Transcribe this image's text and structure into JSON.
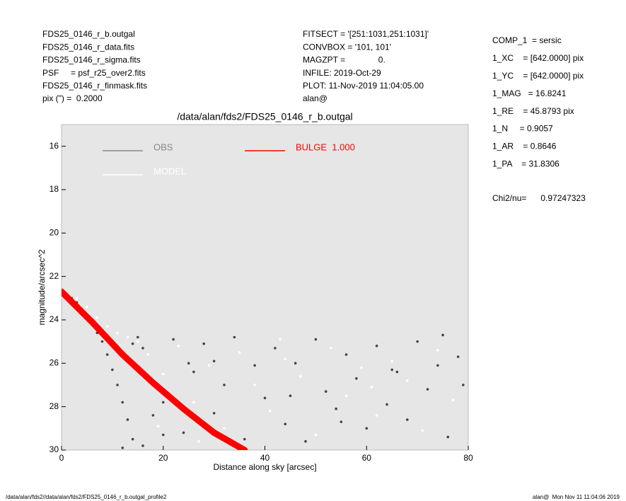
{
  "header_left": [
    "FDS25_0146_r_b.outgal",
    "FDS25_0146_r_data.fits",
    "FDS25_0146_r_sigma.fits",
    "PSF     = psf_r25_over2.fits",
    "FDS25_0146_r_finmask.fits",
    "pix (\") =  0.2000"
  ],
  "header_middle": [
    "FITSECT = '[251:1031,251:1031]'",
    "CONVBOX = '101, 101'",
    "MAGZPT =              0.",
    "INFILE: 2019-Oct-29",
    "PLOT: 11-Nov-2019 11:04:05.00",
    "alan@"
  ],
  "parameters": [
    "COMP_1  = sersic",
    "1_XC    = [642.0000] pix",
    "1_YC    = [642.0000] pix",
    "1_MAG   = 16.8241",
    "1_RE    = 45.8793 pix",
    "1_N     = 0.9057",
    "1_AR    = 0.8646",
    "1_PA    = 31.8306"
  ],
  "chi2": "Chi2/nu=      0.97247323",
  "footer_left": "/data/alan/fds2//data/alan/fds2/FDS25_0146_r_b.outgal_profile2",
  "footer_right": "alan@  Mon Nov 11 11:04:06 2019",
  "chart_data": {
    "type": "scatter",
    "title": "/data/alan/fds2/FDS25_0146_r_b.outgal",
    "xlabel": "Distance along sky [arcsec]",
    "ylabel": "magnitude/arcsec^2",
    "xlim": [
      0,
      80
    ],
    "ylim": [
      30,
      15
    ],
    "xticks": [
      0,
      20,
      40,
      60,
      80
    ],
    "yticks": [
      16,
      18,
      20,
      22,
      24,
      26,
      28,
      30
    ],
    "background": "#e6e6e6",
    "series": [
      {
        "name": "OBS",
        "color": "#444444",
        "legend_color": "#888888",
        "marker": "dot",
        "x": [
          1,
          2,
          3,
          4,
          5,
          6,
          7,
          8,
          9,
          10,
          11,
          12,
          13,
          14,
          15,
          16,
          18,
          20,
          22,
          24,
          26,
          28,
          30,
          32,
          34,
          36,
          38,
          40,
          42,
          44,
          46,
          48,
          50,
          52,
          54,
          56,
          58,
          60,
          62,
          64,
          66,
          68,
          70,
          72,
          74,
          76,
          78,
          79,
          14,
          16,
          18,
          12,
          20,
          25,
          30,
          45,
          55,
          65,
          75
        ],
        "values": [
          22.8,
          23.0,
          23.2,
          23.5,
          23.9,
          24.2,
          24.6,
          25.0,
          25.6,
          26.3,
          27.0,
          27.8,
          28.6,
          29.5,
          24.8,
          25.3,
          26.9,
          27.8,
          24.9,
          29.2,
          26.4,
          25.1,
          28.3,
          27.0,
          24.8,
          29.5,
          26.1,
          27.6,
          25.3,
          28.8,
          26.0,
          29.6,
          24.9,
          27.3,
          28.1,
          25.6,
          26.7,
          29.0,
          25.2,
          27.9,
          26.4,
          28.6,
          25.0,
          27.2,
          26.1,
          29.4,
          25.7,
          27.0,
          25.1,
          29.8,
          28.4,
          29.9,
          29.3,
          26.0,
          25.9,
          27.5,
          28.7,
          26.3,
          24.7
        ]
      },
      {
        "name": "MODEL",
        "color": "#ffffff",
        "legend_color": "#ffffff",
        "marker": "dot",
        "x": [
          3,
          5,
          7,
          9,
          11,
          13,
          15,
          17,
          20,
          23,
          26,
          29,
          32,
          35,
          38,
          41,
          44,
          47,
          50,
          53,
          56,
          59,
          62,
          65,
          68,
          71,
          74,
          77,
          19,
          27,
          43,
          61
        ],
        "values": [
          23.0,
          23.4,
          23.9,
          24.3,
          24.6,
          24.8,
          25.0,
          25.6,
          26.5,
          25.2,
          27.8,
          26.1,
          29.0,
          25.5,
          27.0,
          28.2,
          25.8,
          26.6,
          29.3,
          25.3,
          27.5,
          26.2,
          28.4,
          25.9,
          26.8,
          29.1,
          25.4,
          27.7,
          28.9,
          29.6,
          24.9,
          27.1
        ]
      },
      {
        "name": "BULGE  1.000",
        "color": "#ff0000",
        "legend_color": "#ff0000",
        "marker": "band",
        "x": [
          0,
          6,
          12,
          18,
          24,
          30,
          36
        ],
        "values": [
          22.7,
          24.1,
          25.6,
          26.9,
          28.1,
          29.2,
          30
        ]
      }
    ]
  }
}
